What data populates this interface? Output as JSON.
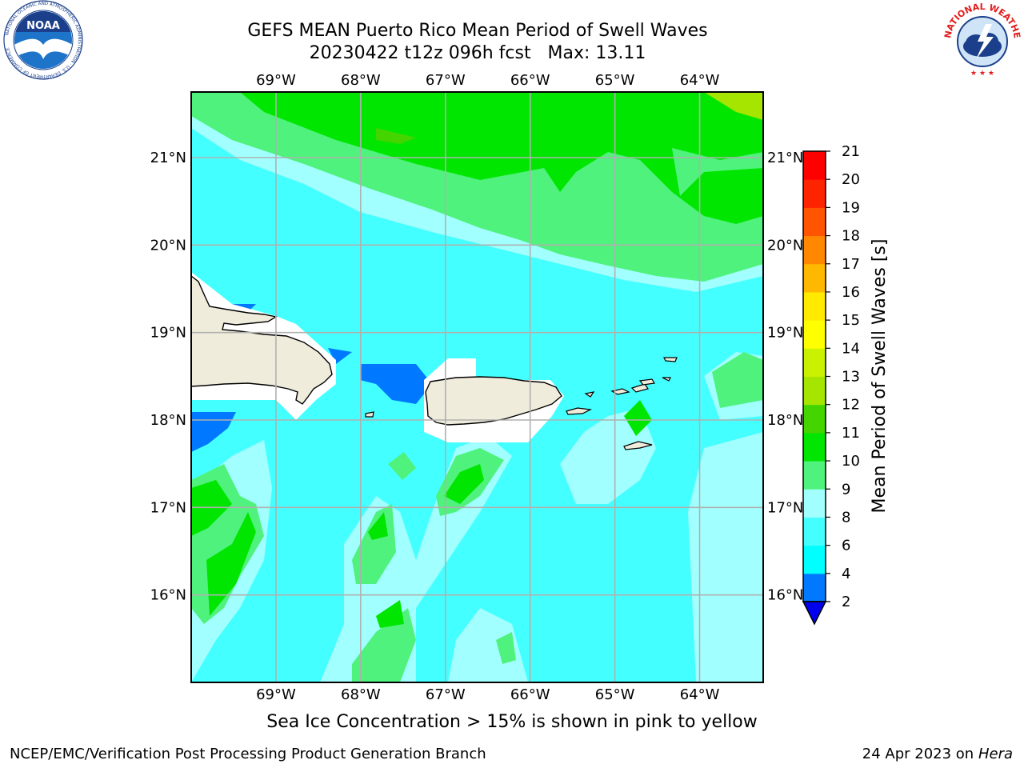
{
  "header": {
    "title_line1": "GEFS MEAN Puerto Rico Mean Period of Swell Waves",
    "title_line2": "20230422 t12z 096h fcst   Max: 13.11"
  },
  "logos": {
    "left": {
      "name": "noaa-logo",
      "text": "NOAA",
      "ring_text": "NATIONAL OCEANIC AND ATMOSPHERIC ADMINISTRATION · U.S. DEPARTMENT OF COMMERCE"
    },
    "right": {
      "name": "nws-logo",
      "ring_text": "NATIONAL WEATHER SERVICE"
    }
  },
  "map": {
    "lon_labels": [
      "69°W",
      "68°W",
      "67°W",
      "66°W",
      "65°W",
      "64°W"
    ],
    "lat_labels": [
      "21°N",
      "20°N",
      "19°N",
      "18°N",
      "17°N",
      "16°N"
    ],
    "lon_range": [
      -70.0,
      -63.25
    ],
    "lat_range": [
      15.0,
      21.75
    ],
    "colors": {
      "land": "#efecdc",
      "grid": "#b0b0b0",
      "coast": "#000000"
    }
  },
  "colorbar": {
    "label": "Mean Period of Swell Waves [s]",
    "ticks": [
      "2",
      "4",
      "6",
      "8",
      "9",
      "10",
      "11",
      "12",
      "13",
      "14",
      "15",
      "16",
      "17",
      "18",
      "19",
      "20",
      "21"
    ],
    "tick_values": [
      2,
      4,
      6,
      8,
      9,
      10,
      11,
      12,
      13,
      14,
      15,
      16,
      17,
      18,
      19,
      20,
      21
    ],
    "colors": [
      "#0000ee",
      "#0078ff",
      "#00ffff",
      "#44ffff",
      "#a2ffff",
      "#4ff27c",
      "#00e600",
      "#44d500",
      "#a5e500",
      "#caf200",
      "#ffff00",
      "#ffea00",
      "#ffb800",
      "#ff8800",
      "#ff5500",
      "#ff2400",
      "#ff0000"
    ],
    "under_color": "#0000ee"
  },
  "footer": {
    "note": "Sea Ice Concentration > 15% is shown in pink to yellow",
    "left": "NCEP/EMC/Verification Post Processing Product Generation Branch",
    "right_date": "24 Apr 2023 on ",
    "right_host": "Hera"
  }
}
